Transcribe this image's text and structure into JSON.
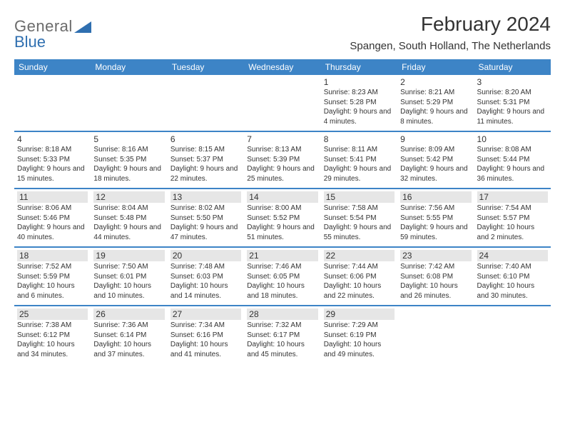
{
  "logo": {
    "text1": "General",
    "text2": "Blue",
    "icon_color": "#2f6fb0"
  },
  "title": "February 2024",
  "subtitle": "Spangen, South Holland, The Netherlands",
  "header_bg": "#3d84c6",
  "header_fg": "#ffffff",
  "row_border": "#3d84c6",
  "shade_bg": "#e6e6e6",
  "text_color": "#333333",
  "font_day": 12,
  "font_info": 10,
  "days_of_week": [
    "Sunday",
    "Monday",
    "Tuesday",
    "Wednesday",
    "Thursday",
    "Friday",
    "Saturday"
  ],
  "weeks": [
    [
      {
        "day": "",
        "sunrise": "",
        "sunset": "",
        "daylight": ""
      },
      {
        "day": "",
        "sunrise": "",
        "sunset": "",
        "daylight": ""
      },
      {
        "day": "",
        "sunrise": "",
        "sunset": "",
        "daylight": ""
      },
      {
        "day": "",
        "sunrise": "",
        "sunset": "",
        "daylight": ""
      },
      {
        "day": "1",
        "sunrise": "Sunrise: 8:23 AM",
        "sunset": "Sunset: 5:28 PM",
        "daylight": "Daylight: 9 hours and 4 minutes."
      },
      {
        "day": "2",
        "sunrise": "Sunrise: 8:21 AM",
        "sunset": "Sunset: 5:29 PM",
        "daylight": "Daylight: 9 hours and 8 minutes."
      },
      {
        "day": "3",
        "sunrise": "Sunrise: 8:20 AM",
        "sunset": "Sunset: 5:31 PM",
        "daylight": "Daylight: 9 hours and 11 minutes."
      }
    ],
    [
      {
        "day": "4",
        "sunrise": "Sunrise: 8:18 AM",
        "sunset": "Sunset: 5:33 PM",
        "daylight": "Daylight: 9 hours and 15 minutes."
      },
      {
        "day": "5",
        "sunrise": "Sunrise: 8:16 AM",
        "sunset": "Sunset: 5:35 PM",
        "daylight": "Daylight: 9 hours and 18 minutes."
      },
      {
        "day": "6",
        "sunrise": "Sunrise: 8:15 AM",
        "sunset": "Sunset: 5:37 PM",
        "daylight": "Daylight: 9 hours and 22 minutes."
      },
      {
        "day": "7",
        "sunrise": "Sunrise: 8:13 AM",
        "sunset": "Sunset: 5:39 PM",
        "daylight": "Daylight: 9 hours and 25 minutes."
      },
      {
        "day": "8",
        "sunrise": "Sunrise: 8:11 AM",
        "sunset": "Sunset: 5:41 PM",
        "daylight": "Daylight: 9 hours and 29 minutes."
      },
      {
        "day": "9",
        "sunrise": "Sunrise: 8:09 AM",
        "sunset": "Sunset: 5:42 PM",
        "daylight": "Daylight: 9 hours and 32 minutes."
      },
      {
        "day": "10",
        "sunrise": "Sunrise: 8:08 AM",
        "sunset": "Sunset: 5:44 PM",
        "daylight": "Daylight: 9 hours and 36 minutes."
      }
    ],
    [
      {
        "day": "11",
        "sunrise": "Sunrise: 8:06 AM",
        "sunset": "Sunset: 5:46 PM",
        "daylight": "Daylight: 9 hours and 40 minutes.",
        "shade": true
      },
      {
        "day": "12",
        "sunrise": "Sunrise: 8:04 AM",
        "sunset": "Sunset: 5:48 PM",
        "daylight": "Daylight: 9 hours and 44 minutes.",
        "shade": true
      },
      {
        "day": "13",
        "sunrise": "Sunrise: 8:02 AM",
        "sunset": "Sunset: 5:50 PM",
        "daylight": "Daylight: 9 hours and 47 minutes.",
        "shade": true
      },
      {
        "day": "14",
        "sunrise": "Sunrise: 8:00 AM",
        "sunset": "Sunset: 5:52 PM",
        "daylight": "Daylight: 9 hours and 51 minutes.",
        "shade": true
      },
      {
        "day": "15",
        "sunrise": "Sunrise: 7:58 AM",
        "sunset": "Sunset: 5:54 PM",
        "daylight": "Daylight: 9 hours and 55 minutes.",
        "shade": true
      },
      {
        "day": "16",
        "sunrise": "Sunrise: 7:56 AM",
        "sunset": "Sunset: 5:55 PM",
        "daylight": "Daylight: 9 hours and 59 minutes.",
        "shade": true
      },
      {
        "day": "17",
        "sunrise": "Sunrise: 7:54 AM",
        "sunset": "Sunset: 5:57 PM",
        "daylight": "Daylight: 10 hours and 2 minutes.",
        "shade": true
      }
    ],
    [
      {
        "day": "18",
        "sunrise": "Sunrise: 7:52 AM",
        "sunset": "Sunset: 5:59 PM",
        "daylight": "Daylight: 10 hours and 6 minutes.",
        "shade": true
      },
      {
        "day": "19",
        "sunrise": "Sunrise: 7:50 AM",
        "sunset": "Sunset: 6:01 PM",
        "daylight": "Daylight: 10 hours and 10 minutes.",
        "shade": true
      },
      {
        "day": "20",
        "sunrise": "Sunrise: 7:48 AM",
        "sunset": "Sunset: 6:03 PM",
        "daylight": "Daylight: 10 hours and 14 minutes.",
        "shade": true
      },
      {
        "day": "21",
        "sunrise": "Sunrise: 7:46 AM",
        "sunset": "Sunset: 6:05 PM",
        "daylight": "Daylight: 10 hours and 18 minutes.",
        "shade": true
      },
      {
        "day": "22",
        "sunrise": "Sunrise: 7:44 AM",
        "sunset": "Sunset: 6:06 PM",
        "daylight": "Daylight: 10 hours and 22 minutes.",
        "shade": true
      },
      {
        "day": "23",
        "sunrise": "Sunrise: 7:42 AM",
        "sunset": "Sunset: 6:08 PM",
        "daylight": "Daylight: 10 hours and 26 minutes.",
        "shade": true
      },
      {
        "day": "24",
        "sunrise": "Sunrise: 7:40 AM",
        "sunset": "Sunset: 6:10 PM",
        "daylight": "Daylight: 10 hours and 30 minutes.",
        "shade": true
      }
    ],
    [
      {
        "day": "25",
        "sunrise": "Sunrise: 7:38 AM",
        "sunset": "Sunset: 6:12 PM",
        "daylight": "Daylight: 10 hours and 34 minutes.",
        "shade": true
      },
      {
        "day": "26",
        "sunrise": "Sunrise: 7:36 AM",
        "sunset": "Sunset: 6:14 PM",
        "daylight": "Daylight: 10 hours and 37 minutes.",
        "shade": true
      },
      {
        "day": "27",
        "sunrise": "Sunrise: 7:34 AM",
        "sunset": "Sunset: 6:16 PM",
        "daylight": "Daylight: 10 hours and 41 minutes.",
        "shade": true
      },
      {
        "day": "28",
        "sunrise": "Sunrise: 7:32 AM",
        "sunset": "Sunset: 6:17 PM",
        "daylight": "Daylight: 10 hours and 45 minutes.",
        "shade": true
      },
      {
        "day": "29",
        "sunrise": "Sunrise: 7:29 AM",
        "sunset": "Sunset: 6:19 PM",
        "daylight": "Daylight: 10 hours and 49 minutes.",
        "shade": true
      },
      {
        "day": "",
        "sunrise": "",
        "sunset": "",
        "daylight": ""
      },
      {
        "day": "",
        "sunrise": "",
        "sunset": "",
        "daylight": ""
      }
    ]
  ]
}
